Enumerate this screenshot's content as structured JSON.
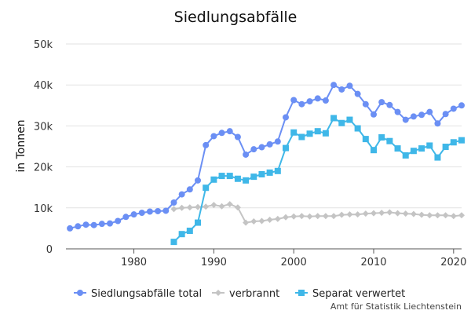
{
  "chart_data": {
    "type": "line",
    "title": "Siedlungsabfälle",
    "xlabel": "",
    "ylabel": "in Tonnen",
    "xlim": [
      1971.5,
      2021
    ],
    "ylim": [
      0,
      50000
    ],
    "x_ticks": [
      1980,
      1990,
      2000,
      2010,
      2020
    ],
    "y_ticks": [
      0,
      10000,
      20000,
      30000,
      40000,
      50000
    ],
    "y_tick_labels": [
      "0",
      "10k",
      "20k",
      "30k",
      "40k",
      "50k"
    ],
    "grid": "horizontal",
    "legend_position": "bottom",
    "series": [
      {
        "name": "Siedlungsabfälle total",
        "color": "#6b8ff4",
        "marker": "circle",
        "x": [
          1972,
          1973,
          1974,
          1975,
          1976,
          1977,
          1978,
          1979,
          1980,
          1981,
          1982,
          1983,
          1984,
          1985,
          1986,
          1987,
          1988,
          1989,
          1990,
          1991,
          1992,
          1993,
          1994,
          1995,
          1996,
          1997,
          1998,
          1999,
          2000,
          2001,
          2002,
          2003,
          2004,
          2005,
          2006,
          2007,
          2008,
          2009,
          2010,
          2011,
          2012,
          2013,
          2014,
          2015,
          2016,
          2017,
          2018,
          2019,
          2020,
          2021
        ],
        "values": [
          5000,
          5500,
          5900,
          5800,
          6100,
          6200,
          6800,
          7800,
          8400,
          8800,
          9100,
          9200,
          9300,
          11300,
          13300,
          14500,
          16700,
          25300,
          27500,
          28300,
          28700,
          27300,
          23000,
          24300,
          24800,
          25500,
          26200,
          32100,
          36300,
          35300,
          36000,
          36700,
          36200,
          40000,
          38900,
          39800,
          37800,
          35300,
          32800,
          35800,
          35100,
          33400,
          31500,
          32300,
          32700,
          33400,
          30600,
          32900,
          34200,
          35000
        ]
      },
      {
        "name": "verbrannt",
        "color": "#c4c4c4",
        "marker": "diamond",
        "x": [
          1985,
          1986,
          1987,
          1988,
          1989,
          1990,
          1991,
          1992,
          1993,
          1994,
          1995,
          1996,
          1997,
          1998,
          1999,
          2000,
          2001,
          2002,
          2003,
          2004,
          2005,
          2006,
          2007,
          2008,
          2009,
          2010,
          2011,
          2012,
          2013,
          2014,
          2015,
          2016,
          2017,
          2018,
          2019,
          2020,
          2021
        ],
        "values": [
          9700,
          10000,
          10100,
          10200,
          10300,
          10700,
          10400,
          10900,
          10100,
          6400,
          6700,
          6800,
          7100,
          7300,
          7700,
          7900,
          8000,
          7900,
          8000,
          8000,
          8000,
          8300,
          8400,
          8400,
          8600,
          8700,
          8800,
          8900,
          8700,
          8600,
          8500,
          8300,
          8200,
          8200,
          8200,
          8000,
          8200
        ]
      },
      {
        "name": "Separat verwertet",
        "color": "#3fb7e8",
        "marker": "square",
        "x": [
          1985,
          1986,
          1987,
          1988,
          1989,
          1990,
          1991,
          1992,
          1993,
          1994,
          1995,
          1996,
          1997,
          1998,
          1999,
          2000,
          2001,
          2002,
          2003,
          2004,
          2005,
          2006,
          2007,
          2008,
          2009,
          2010,
          2011,
          2012,
          2013,
          2014,
          2015,
          2016,
          2017,
          2018,
          2019,
          2020,
          2021
        ],
        "values": [
          1700,
          3600,
          4400,
          6400,
          14900,
          16900,
          17800,
          17800,
          17100,
          16700,
          17600,
          18200,
          18600,
          19000,
          24600,
          28400,
          27300,
          28100,
          28700,
          28200,
          31900,
          30700,
          31500,
          29400,
          26800,
          24100,
          27200,
          26300,
          24500,
          22800,
          23900,
          24500,
          25200,
          22300,
          24900,
          26000,
          26500
        ]
      }
    ]
  },
  "credit": "Amt für Statistik Liechtenstein"
}
